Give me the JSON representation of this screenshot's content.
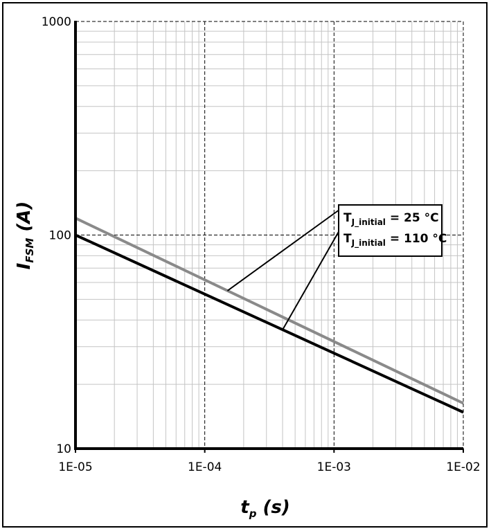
{
  "chart_data": {
    "type": "line",
    "x_scale": "log",
    "y_scale": "log",
    "xlim": [
      1e-05,
      0.01
    ],
    "ylim": [
      10,
      1000
    ],
    "x_ticks": [
      "1E-05",
      "1E-04",
      "1E-03",
      "1E-02"
    ],
    "y_ticks": [
      "1000",
      "100",
      "10"
    ],
    "grid": true,
    "legend_position": "right",
    "xlabel": {
      "main": "t",
      "sub": "p",
      "unit": " (s)"
    },
    "ylabel": {
      "main": "I",
      "sub": "FSM",
      "unit": " (A)"
    },
    "series": [
      {
        "name": "T_J_initial = 25 °C",
        "label_main": "T",
        "label_sub": "J_initial",
        "label_rest": " = 25 °C",
        "color": "#8a8a8a",
        "x": [
          1e-05,
          0.01
        ],
        "y": [
          120,
          16.3
        ]
      },
      {
        "name": "T_J_initial = 110 °C",
        "label_main": "T",
        "label_sub": "J_initial",
        "label_rest": " = 110 °C",
        "color": "#000000",
        "x": [
          1e-05,
          0.01
        ],
        "y": [
          100,
          14.8
        ]
      }
    ]
  }
}
